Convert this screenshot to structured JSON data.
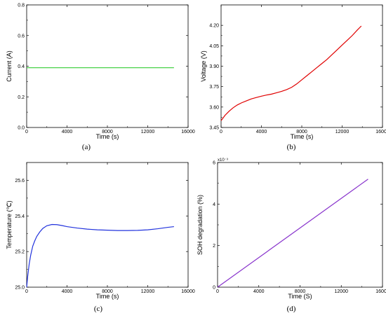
{
  "figure": {
    "panels": [
      "(a)",
      "(b)",
      "(c)",
      "(d)"
    ]
  },
  "chart_data": [
    {
      "id": "a",
      "type": "line",
      "panel_label": "(a)",
      "xlabel": "Time (s)",
      "ylabel": "Current (A)",
      "xlim": [
        0,
        16000
      ],
      "ylim": [
        0.0,
        0.8
      ],
      "xticks": [
        0,
        4000,
        8000,
        12000,
        16000
      ],
      "yticks": [
        0.0,
        0.2,
        0.4,
        0.6,
        0.8
      ],
      "xtick_labels": [
        "0",
        "4000",
        "8000",
        "12000",
        "16000"
      ],
      "ytick_labels": [
        "0.0",
        "0.2",
        "0.4",
        "0.6",
        "0.8"
      ],
      "y_exponent_label": "",
      "grid": false,
      "series": [
        {
          "color": "#33cc33",
          "x": [
            0,
            14600
          ],
          "y": [
            0.39,
            0.39
          ]
        }
      ]
    },
    {
      "id": "b",
      "type": "line",
      "panel_label": "(b)",
      "xlabel": "Time (s)",
      "ylabel": "Voltage (V)",
      "xlim": [
        0,
        16000
      ],
      "ylim": [
        3.45,
        4.35
      ],
      "xticks": [
        0,
        4000,
        8000,
        12000,
        16000
      ],
      "yticks": [
        3.45,
        3.6,
        3.75,
        3.9,
        4.05,
        4.2
      ],
      "xtick_labels": [
        "0",
        "4000",
        "8000",
        "12000",
        "16000"
      ],
      "ytick_labels": [
        "3.45",
        "3.60",
        "3.75",
        "3.90",
        "4.05",
        "4.20"
      ],
      "y_exponent_label": "",
      "grid": false,
      "series": [
        {
          "color": "#e00000",
          "x": [
            0,
            400,
            800,
            1200,
            1600,
            2000,
            2500,
            3000,
            3500,
            4000,
            4500,
            5000,
            5500,
            6000,
            6500,
            7000,
            7500,
            8000,
            8500,
            9000,
            9500,
            10000,
            10500,
            11000,
            11500,
            12000,
            12500,
            13000,
            13500,
            13900
          ],
          "y": [
            3.5,
            3.54,
            3.57,
            3.595,
            3.615,
            3.63,
            3.645,
            3.66,
            3.67,
            3.68,
            3.688,
            3.695,
            3.705,
            3.715,
            3.728,
            3.745,
            3.77,
            3.8,
            3.83,
            3.86,
            3.89,
            3.92,
            3.95,
            3.985,
            4.02,
            4.055,
            4.09,
            4.125,
            4.165,
            4.195
          ]
        }
      ]
    },
    {
      "id": "c",
      "type": "line",
      "panel_label": "(c)",
      "xlabel": "Time (s)",
      "ylabel": "Temperature (℃)",
      "xlim": [
        0,
        16000
      ],
      "ylim": [
        25.0,
        25.7
      ],
      "xticks": [
        0,
        4000,
        8000,
        12000,
        16000
      ],
      "yticks": [
        25.0,
        25.2,
        25.4,
        25.6
      ],
      "xtick_labels": [
        "0",
        "4000",
        "8000",
        "12000",
        "16000"
      ],
      "ytick_labels": [
        "25.0",
        "25.2",
        "25.4",
        "25.6"
      ],
      "y_exponent_label": "",
      "grid": false,
      "series": [
        {
          "color": "#2233dd",
          "x": [
            0,
            100,
            250,
            400,
            600,
            800,
            1000,
            1300,
            1600,
            2000,
            2500,
            3000,
            3500,
            4000,
            5000,
            6000,
            7000,
            8000,
            9000,
            10000,
            11000,
            12000,
            13000,
            14000,
            14600
          ],
          "y": [
            25.0,
            25.06,
            25.13,
            25.18,
            25.23,
            25.26,
            25.285,
            25.31,
            25.33,
            25.345,
            25.352,
            25.351,
            25.346,
            25.34,
            25.332,
            25.326,
            25.322,
            25.32,
            25.318,
            25.318,
            25.319,
            25.322,
            25.328,
            25.336,
            25.34
          ]
        }
      ]
    },
    {
      "id": "d",
      "type": "line",
      "panel_label": "(d)",
      "xlabel": "Time (S)",
      "ylabel": "SOH degradation (%)",
      "xlim": [
        0,
        16000
      ],
      "ylim": [
        0,
        6
      ],
      "xticks": [
        0,
        4000,
        8000,
        12000,
        16000
      ],
      "yticks": [
        0,
        2,
        4,
        6
      ],
      "xtick_labels": [
        "0",
        "4000",
        "8000",
        "12000",
        "16000"
      ],
      "ytick_labels": [
        "0",
        "2",
        "4",
        "6"
      ],
      "y_exponent_label": "x10⁻³",
      "grid": false,
      "series": [
        {
          "color": "#8833cc",
          "x": [
            0,
            14600
          ],
          "y": [
            0,
            5.2
          ]
        }
      ]
    }
  ]
}
